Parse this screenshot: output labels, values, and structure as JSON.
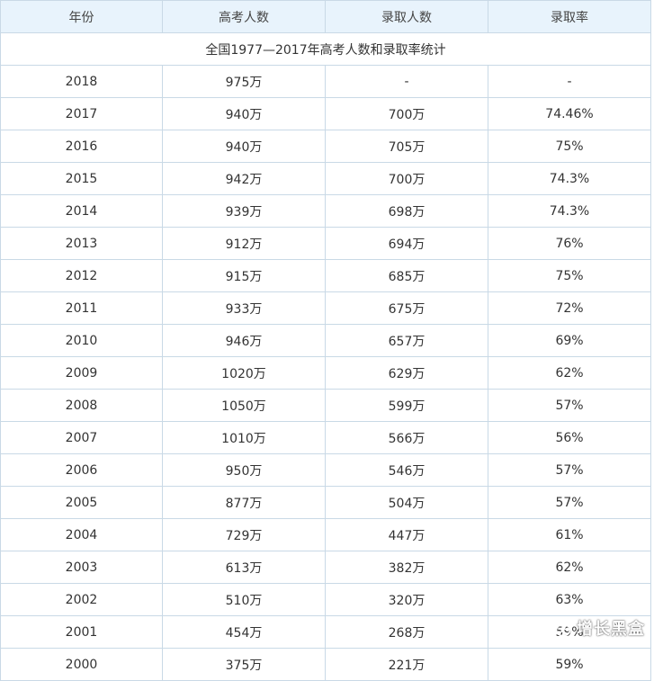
{
  "table": {
    "headers": [
      "年份",
      "高考人数",
      "录取人数",
      "录取率"
    ],
    "caption": "全国1977—2017年高考人数和录取率统计",
    "rows": [
      [
        "2018",
        "975万",
        "-",
        "-"
      ],
      [
        "2017",
        "940万",
        "700万",
        "74.46%"
      ],
      [
        "2016",
        "940万",
        "705万",
        "75%"
      ],
      [
        "2015",
        "942万",
        "700万",
        "74.3%"
      ],
      [
        "2014",
        "939万",
        "698万",
        "74.3%"
      ],
      [
        "2013",
        "912万",
        "694万",
        "76%"
      ],
      [
        "2012",
        "915万",
        "685万",
        "75%"
      ],
      [
        "2011",
        "933万",
        "675万",
        "72%"
      ],
      [
        "2010",
        "946万",
        "657万",
        "69%"
      ],
      [
        "2009",
        "1020万",
        "629万",
        "62%"
      ],
      [
        "2008",
        "1050万",
        "599万",
        "57%"
      ],
      [
        "2007",
        "1010万",
        "566万",
        "56%"
      ],
      [
        "2006",
        "950万",
        "546万",
        "57%"
      ],
      [
        "2005",
        "877万",
        "504万",
        "57%"
      ],
      [
        "2004",
        "729万",
        "447万",
        "61%"
      ],
      [
        "2003",
        "613万",
        "382万",
        "62%"
      ],
      [
        "2002",
        "510万",
        "320万",
        "63%"
      ],
      [
        "2001",
        "454万",
        "268万",
        "59%"
      ],
      [
        "2000",
        "375万",
        "221万",
        "59%"
      ]
    ]
  },
  "watermark": {
    "text": "增长黑盒",
    "icon": "wechat-icon"
  }
}
